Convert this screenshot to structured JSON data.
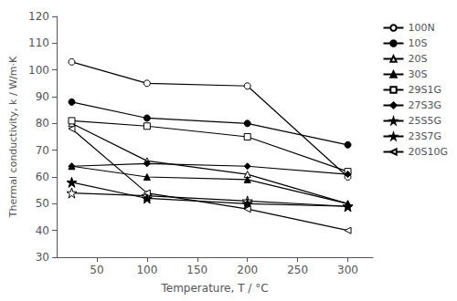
{
  "chart_data": {
    "type": "line",
    "x": [
      25,
      100,
      200,
      300
    ],
    "series": [
      {
        "name": "100N",
        "values": [
          103,
          95,
          94,
          60
        ],
        "marker": "circle_open",
        "color": "black",
        "line_style": "solid"
      },
      {
        "name": "10S",
        "values": [
          88,
          82,
          80,
          72
        ],
        "marker": "circle_filled",
        "color": "black",
        "line_style": "solid"
      },
      {
        "name": "20S",
        "values": [
          80,
          66,
          61,
          50
        ],
        "marker": "triangle_open",
        "color": "black",
        "line_style": "solid"
      },
      {
        "name": "30S",
        "values": [
          64,
          60,
          59,
          50
        ],
        "marker": "triangle_filled",
        "color": "black",
        "line_style": "solid"
      },
      {
        "name": "29S1G",
        "values": [
          81,
          79,
          75,
          62
        ],
        "marker": "square_open",
        "color": "black",
        "line_style": "solid"
      },
      {
        "name": "27S3G",
        "values": [
          64,
          65,
          64,
          61
        ],
        "marker": "diamond_filled",
        "color": "black",
        "line_style": "solid"
      },
      {
        "name": "25S5G",
        "values": [
          54,
          53,
          51,
          49
        ],
        "marker": "star_open",
        "color": "black",
        "line_style": "solid"
      },
      {
        "name": "23S7G",
        "values": [
          58,
          52,
          50,
          49
        ],
        "marker": "star_filled",
        "color": "black",
        "line_style": "solid"
      },
      {
        "name": "20S10G",
        "values": [
          78,
          54,
          48,
          40
        ],
        "marker": "triangleleft_open",
        "color": "black",
        "line_style": "solid"
      }
    ],
    "xlabel": "Temperature, T / °C",
    "ylabel": "Thermal conductivity, k / W/m·K",
    "xlim": [
      10,
      325
    ],
    "ylim": [
      30,
      120
    ],
    "xticks": [
      50,
      100,
      150,
      200,
      250,
      300
    ],
    "yticks": [
      30,
      40,
      50,
      60,
      70,
      80,
      90,
      100,
      110,
      120
    ],
    "grid": false,
    "legend": "right"
  }
}
